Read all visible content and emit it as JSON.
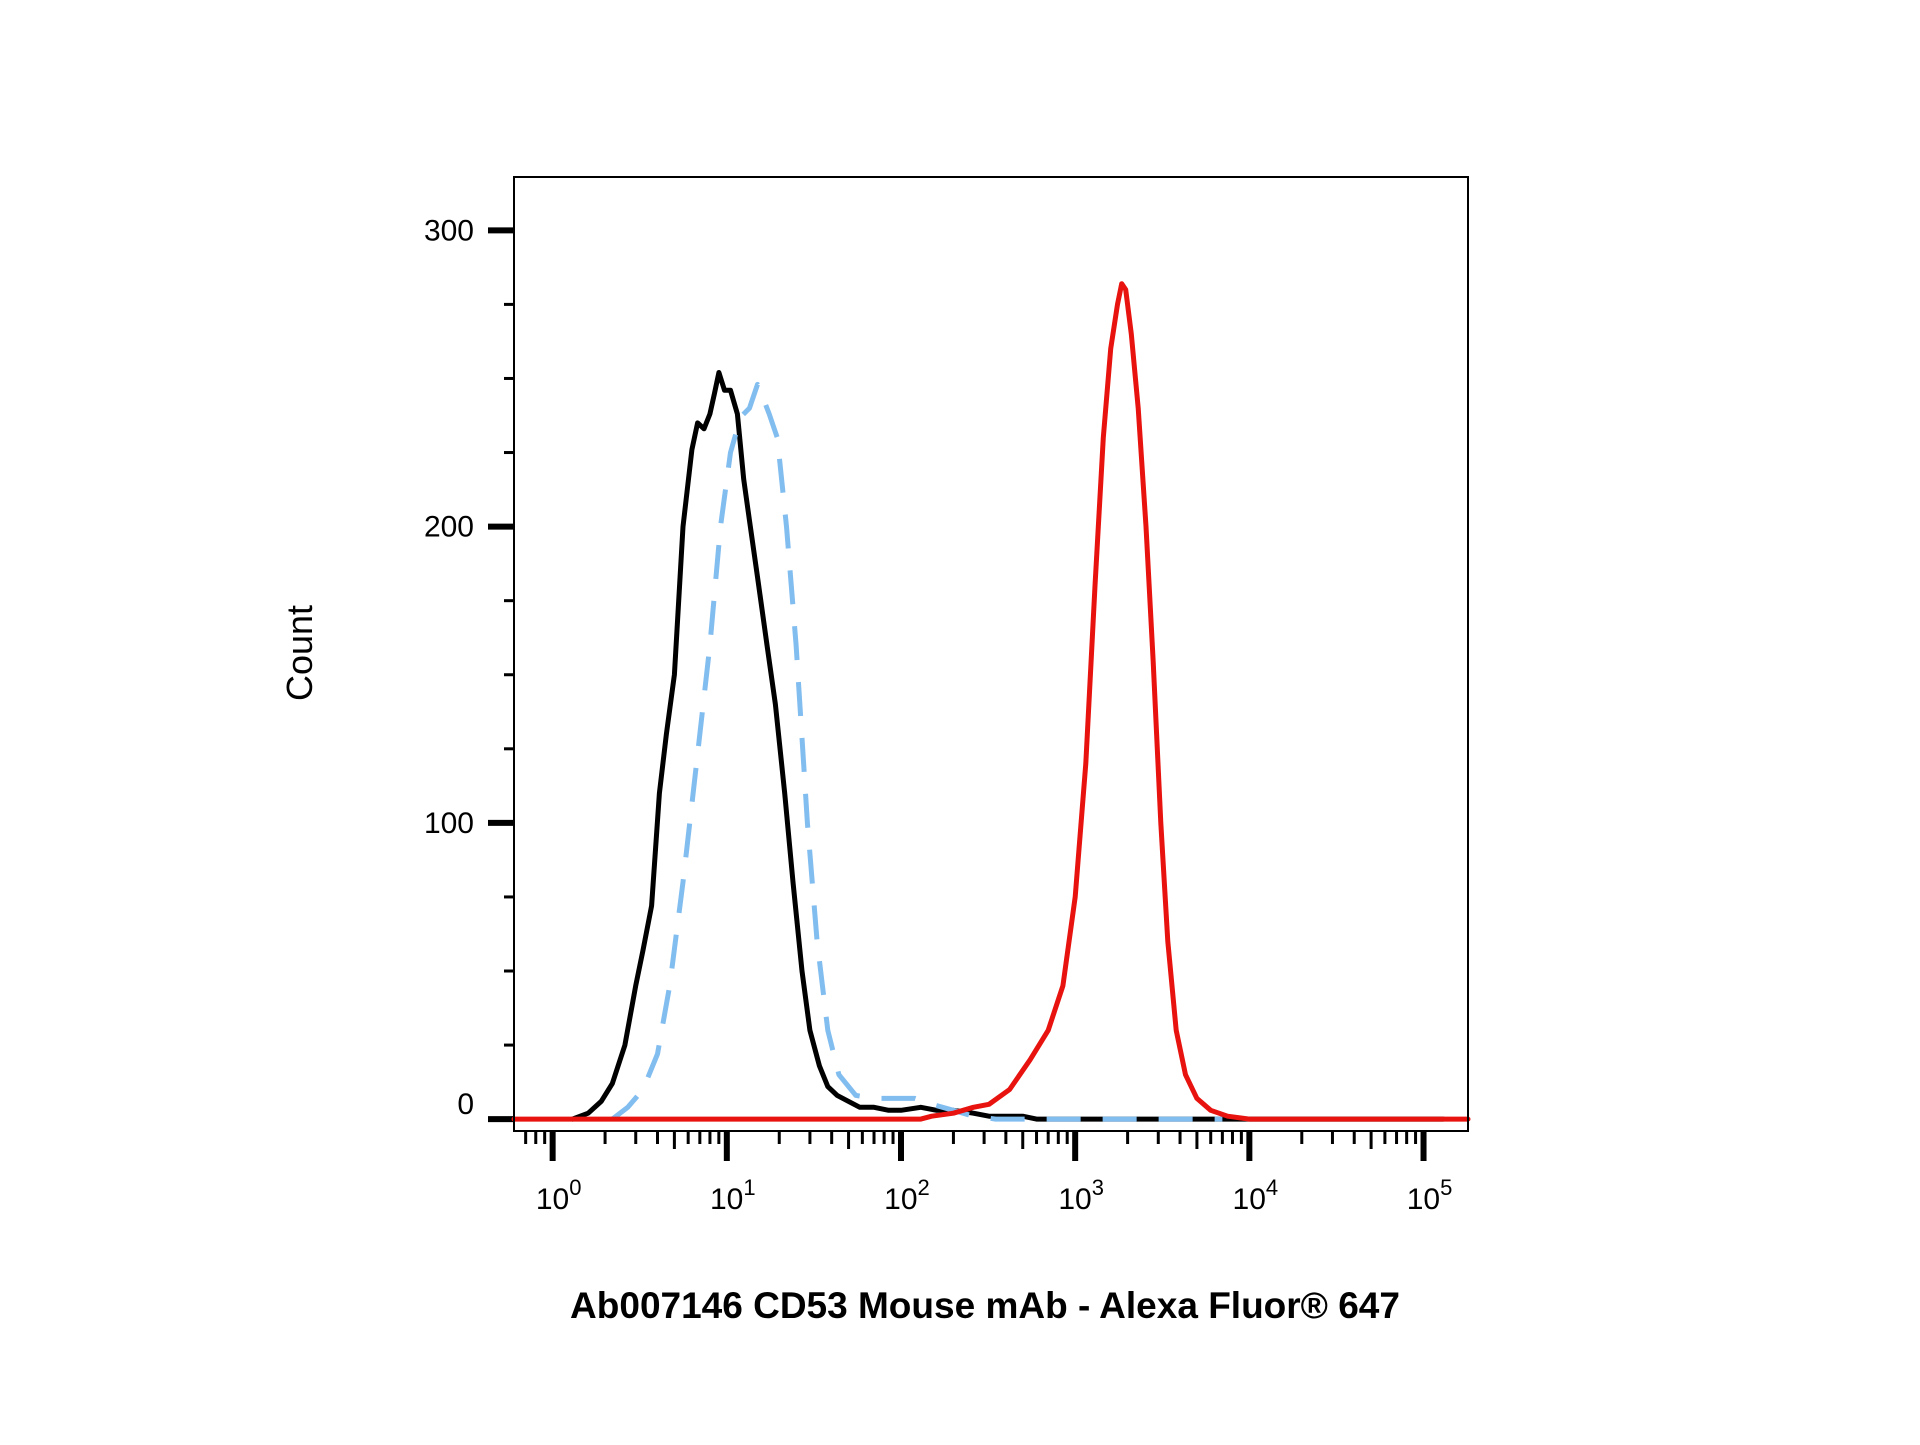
{
  "chart_data": {
    "type": "line",
    "title": "",
    "xlabel": "Ab007146 CD53 Mouse mAb - Alexa Fluor® 647",
    "ylabel": "Count",
    "xscale": "log",
    "xlim": [
      0.6,
      180000
    ],
    "ylim": [
      -4,
      318
    ],
    "grid": false,
    "legend": "none",
    "y_ticks": [
      {
        "value": 0,
        "label": "0"
      },
      {
        "value": 100,
        "label": "100"
      },
      {
        "value": 200,
        "label": "200"
      },
      {
        "value": 300,
        "label": "300"
      }
    ],
    "x_ticks": [
      {
        "value": 1,
        "base": "10",
        "exp": "0"
      },
      {
        "value": 10,
        "base": "10",
        "exp": "1"
      },
      {
        "value": 100,
        "base": "10",
        "exp": "2"
      },
      {
        "value": 1000,
        "base": "10",
        "exp": "3"
      },
      {
        "value": 10000,
        "base": "10",
        "exp": "4"
      },
      {
        "value": 100000,
        "base": "10",
        "exp": "5"
      }
    ],
    "series": [
      {
        "color": "#000000",
        "style": "solid",
        "points": [
          [
            1.3,
            0
          ],
          [
            1.6,
            2
          ],
          [
            1.9,
            6
          ],
          [
            2.2,
            12
          ],
          [
            2.6,
            25
          ],
          [
            3.0,
            45
          ],
          [
            3.3,
            57
          ],
          [
            3.7,
            72
          ],
          [
            4.1,
            110
          ],
          [
            4.5,
            130
          ],
          [
            5.0,
            150
          ],
          [
            5.6,
            200
          ],
          [
            6.3,
            226
          ],
          [
            6.8,
            235
          ],
          [
            7.4,
            233
          ],
          [
            8.0,
            238
          ],
          [
            8.5,
            245
          ],
          [
            9.0,
            252
          ],
          [
            9.7,
            246
          ],
          [
            10.5,
            246
          ],
          [
            11.5,
            238
          ],
          [
            12.5,
            216
          ],
          [
            13.5,
            202
          ],
          [
            15.0,
            183
          ],
          [
            17.0,
            160
          ],
          [
            19.0,
            140
          ],
          [
            21.5,
            110
          ],
          [
            24.0,
            80
          ],
          [
            27.0,
            50
          ],
          [
            30.0,
            30
          ],
          [
            34.0,
            18
          ],
          [
            38.0,
            11
          ],
          [
            43.0,
            8
          ],
          [
            50.0,
            6
          ],
          [
            58.0,
            4
          ],
          [
            70.0,
            4
          ],
          [
            85.0,
            3
          ],
          [
            100.0,
            3
          ],
          [
            130.0,
            4
          ],
          [
            160.0,
            3
          ],
          [
            200.0,
            3
          ],
          [
            260.0,
            2
          ],
          [
            320.0,
            1
          ],
          [
            400.0,
            1
          ],
          [
            500.0,
            1
          ],
          [
            600.0,
            0
          ],
          [
            700.0,
            0
          ],
          [
            1000.0,
            0
          ],
          [
            10000.0,
            0
          ],
          [
            130000.0,
            0
          ]
        ]
      },
      {
        "color": "#82bdf0",
        "style": "dashed",
        "points": [
          [
            2.2,
            0
          ],
          [
            2.7,
            4
          ],
          [
            3.3,
            10
          ],
          [
            4.0,
            22
          ],
          [
            4.7,
            45
          ],
          [
            5.6,
            80
          ],
          [
            6.7,
            120
          ],
          [
            8.0,
            160
          ],
          [
            9.2,
            200
          ],
          [
            10.5,
            225
          ],
          [
            12.0,
            237
          ],
          [
            13.5,
            240
          ],
          [
            15.0,
            248
          ],
          [
            16.0,
            244
          ],
          [
            17.5,
            238
          ],
          [
            19.5,
            230
          ],
          [
            22.0,
            200
          ],
          [
            25.0,
            160
          ],
          [
            29.0,
            100
          ],
          [
            33.0,
            60
          ],
          [
            38.0,
            30
          ],
          [
            44.0,
            15
          ],
          [
            55.0,
            8
          ],
          [
            70.0,
            7
          ],
          [
            90.0,
            7
          ],
          [
            120.0,
            7
          ],
          [
            150.0,
            5
          ],
          [
            200.0,
            3
          ],
          [
            260.0,
            1
          ],
          [
            350.0,
            0
          ],
          [
            500.0,
            0
          ],
          [
            1000.0,
            0
          ],
          [
            2000.0,
            0
          ],
          [
            4000.0,
            0
          ],
          [
            7000.0,
            0
          ]
        ]
      },
      {
        "color": "#e8130f",
        "style": "solid",
        "points": [
          [
            0.6,
            0
          ],
          [
            100.0,
            0
          ],
          [
            130.0,
            0
          ],
          [
            150.0,
            1
          ],
          [
            200.0,
            2
          ],
          [
            260.0,
            4
          ],
          [
            320.0,
            5
          ],
          [
            420.0,
            10
          ],
          [
            550.0,
            20
          ],
          [
            700.0,
            30
          ],
          [
            850.0,
            45
          ],
          [
            1000.0,
            75
          ],
          [
            1150.0,
            120
          ],
          [
            1300.0,
            180
          ],
          [
            1450.0,
            230
          ],
          [
            1600.0,
            260
          ],
          [
            1750.0,
            275
          ],
          [
            1850.0,
            282
          ],
          [
            1950.0,
            280
          ],
          [
            2100.0,
            265
          ],
          [
            2300.0,
            240
          ],
          [
            2550.0,
            200
          ],
          [
            2800.0,
            155
          ],
          [
            3100.0,
            100
          ],
          [
            3400.0,
            60
          ],
          [
            3800.0,
            30
          ],
          [
            4300.0,
            15
          ],
          [
            5000.0,
            7
          ],
          [
            6000.0,
            3
          ],
          [
            7500.0,
            1
          ],
          [
            10000.0,
            0
          ],
          [
            30000.0,
            0
          ],
          [
            180000.0,
            0
          ]
        ]
      }
    ]
  }
}
